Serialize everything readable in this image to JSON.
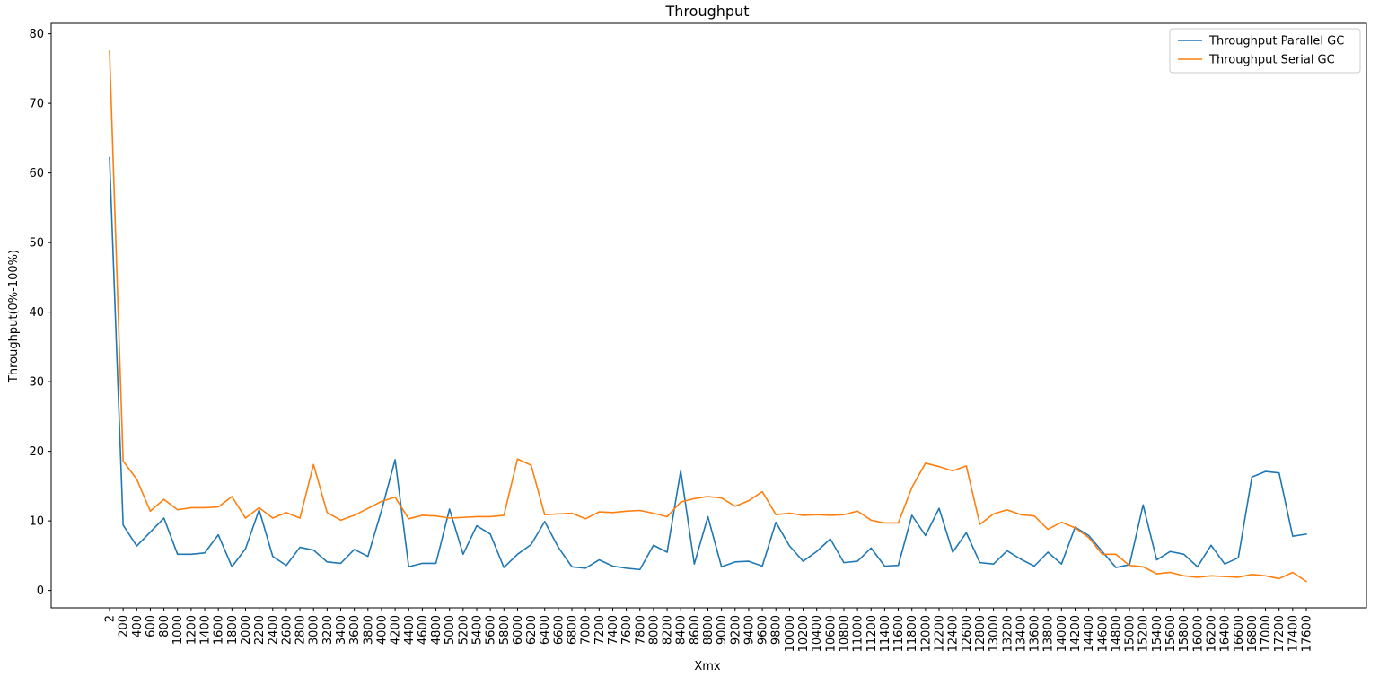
{
  "chart_data": {
    "type": "line",
    "title": "Throughput",
    "xlabel": "Xmx",
    "ylabel": "Throughput(0%-100%)",
    "ylim": [
      -2.5,
      81.5
    ],
    "yticks": [
      0,
      10,
      20,
      30,
      40,
      50,
      60,
      70,
      80
    ],
    "grid": false,
    "legend_position": "top-right",
    "categories": [
      "2",
      "200",
      "400",
      "600",
      "800",
      "1000",
      "1200",
      "1400",
      "1600",
      "1800",
      "2000",
      "2200",
      "2400",
      "2600",
      "2800",
      "3000",
      "3200",
      "3400",
      "3600",
      "3800",
      "4000",
      "4200",
      "4400",
      "4600",
      "4800",
      "5000",
      "5200",
      "5400",
      "5600",
      "5800",
      "6000",
      "6200",
      "6400",
      "6600",
      "6800",
      "7000",
      "7200",
      "7400",
      "7600",
      "7800",
      "8000",
      "8200",
      "8400",
      "8600",
      "8800",
      "9000",
      "9200",
      "9400",
      "9600",
      "9800",
      "10000",
      "10200",
      "10400",
      "10600",
      "10800",
      "11000",
      "11200",
      "11400",
      "11600",
      "11800",
      "12000",
      "12200",
      "12400",
      "12600",
      "12800",
      "13000",
      "13200",
      "13400",
      "13600",
      "13800",
      "14000",
      "14200",
      "14400",
      "14600",
      "14800",
      "15000",
      "15200",
      "15400",
      "15600",
      "15800",
      "16000",
      "16200",
      "16400",
      "16600",
      "16800",
      "17000",
      "17200",
      "17400",
      "17600"
    ],
    "series": [
      {
        "name": "Throughput Parallel GC",
        "color": "#1f77b4",
        "values": [
          62.2,
          9.4,
          6.4,
          8.4,
          10.4,
          5.2,
          5.2,
          5.4,
          8.0,
          3.4,
          6.0,
          11.6,
          4.9,
          3.6,
          6.2,
          5.8,
          4.1,
          3.9,
          5.9,
          4.9,
          11.5,
          18.8,
          3.4,
          3.9,
          3.9,
          11.7,
          5.2,
          9.3,
          8.1,
          3.3,
          5.2,
          6.6,
          9.9,
          6.2,
          3.4,
          3.2,
          4.4,
          3.5,
          3.2,
          3.0,
          6.5,
          5.5,
          17.2,
          3.8,
          10.6,
          3.4,
          4.1,
          4.2,
          3.5,
          9.8,
          6.4,
          4.2,
          5.6,
          7.4,
          4.0,
          4.2,
          6.1,
          3.5,
          3.6,
          10.8,
          7.9,
          11.8,
          5.5,
          8.3,
          4.0,
          3.8,
          5.7,
          4.5,
          3.5,
          5.5,
          3.8,
          9.1,
          7.9,
          5.6,
          3.3,
          3.7,
          12.3,
          4.4,
          5.6,
          5.2,
          3.4,
          6.5,
          3.8,
          4.7,
          16.3,
          17.1,
          16.9,
          7.8,
          8.1
        ]
      },
      {
        "name": "Throughput Serial GC",
        "color": "#ff7f0e",
        "values": [
          77.5,
          18.6,
          16.0,
          11.4,
          13.1,
          11.6,
          11.9,
          11.9,
          12.0,
          13.5,
          10.4,
          11.9,
          10.4,
          11.2,
          10.4,
          18.1,
          11.2,
          10.1,
          10.8,
          11.8,
          12.8,
          13.4,
          10.3,
          10.8,
          10.7,
          10.4,
          10.5,
          10.6,
          10.6,
          10.8,
          18.9,
          18.0,
          10.9,
          11.0,
          11.1,
          10.3,
          11.3,
          11.2,
          11.4,
          11.5,
          11.1,
          10.6,
          12.7,
          13.2,
          13.5,
          13.3,
          12.1,
          12.9,
          14.2,
          10.9,
          11.1,
          10.8,
          10.9,
          10.8,
          10.9,
          11.4,
          10.1,
          9.7,
          9.7,
          14.8,
          18.3,
          17.8,
          17.2,
          17.9,
          9.5,
          11.0,
          11.6,
          10.9,
          10.7,
          8.8,
          9.8,
          9.0,
          7.6,
          5.2,
          5.2,
          3.6,
          3.4,
          2.4,
          2.6,
          2.1,
          1.9,
          2.1,
          2.0,
          1.9,
          2.3,
          2.1,
          1.7,
          2.6,
          1.3
        ]
      }
    ]
  }
}
